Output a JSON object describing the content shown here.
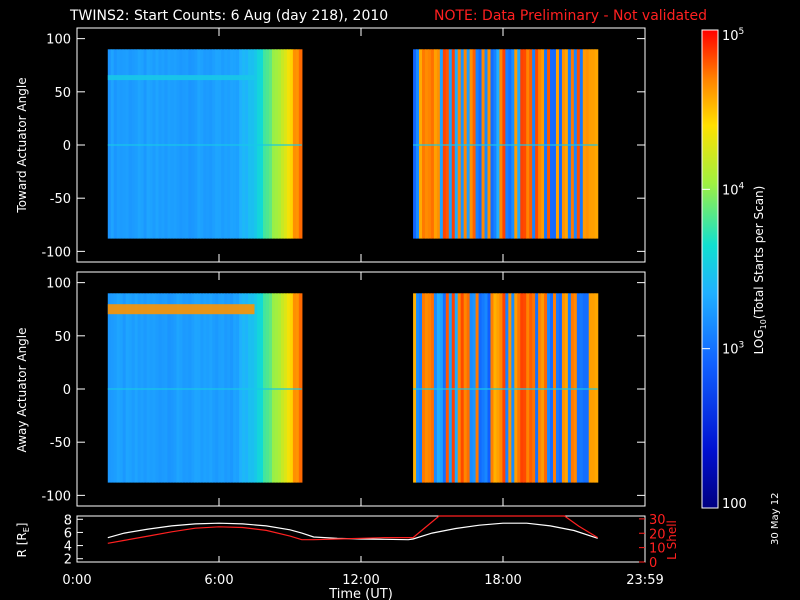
{
  "title": {
    "main": "TWINS2: Start Counts:  6 Aug (day 218), 2010",
    "note": "NOTE: Data Preliminary - Not validated"
  },
  "stamp": "30 May 12",
  "chart_data": [
    {
      "type": "heatmap",
      "panel": "toward",
      "ylabel": "Toward Actuator Angle",
      "ylim": [
        -110,
        110
      ],
      "yticks": [
        100,
        50,
        0,
        -50,
        -100
      ],
      "data_blocks": [
        {
          "x_start_h": 1.3,
          "x_end_h": 9.5,
          "y_range": [
            -88,
            90
          ]
        },
        {
          "x_start_h": 14.2,
          "x_end_h": 22.0,
          "y_range": [
            -88,
            90
          ]
        }
      ]
    },
    {
      "type": "heatmap",
      "panel": "away",
      "ylabel": "Away Actuator Angle",
      "ylim": [
        -110,
        110
      ],
      "yticks": [
        100,
        50,
        0,
        -50,
        -100
      ],
      "data_blocks": [
        {
          "x_start_h": 1.3,
          "x_end_h": 9.5,
          "y_range": [
            -88,
            90
          ]
        },
        {
          "x_start_h": 14.2,
          "x_end_h": 22.0,
          "y_range": [
            -88,
            90
          ]
        }
      ]
    },
    {
      "type": "line",
      "panel": "orbit",
      "xlabel": "Time (UT)",
      "xticks": [
        "0:00",
        "6:00",
        "12:00",
        "18:00",
        "23:59"
      ],
      "xtick_hours": [
        0,
        6,
        12,
        18,
        24
      ],
      "ylabel_left": "R [R",
      "ylabel_left_sub": "E",
      "ylabel_left_end": "]",
      "yticks_left": [
        2,
        4,
        6,
        8
      ],
      "ylim_left": [
        1.5,
        8.5
      ],
      "ylabel_right": "L Shell",
      "yticks_right": [
        0,
        10,
        20,
        30
      ],
      "ylim_right": [
        0,
        32
      ],
      "series": [
        {
          "color": "#ffffff",
          "axis": "left",
          "x": [
            1.3,
            2,
            3,
            4,
            5,
            6,
            7,
            8,
            9,
            9.5,
            10,
            11,
            12,
            13,
            14,
            14.2,
            15,
            16,
            17,
            18,
            19,
            20,
            21,
            22
          ],
          "y": [
            5.2,
            5.9,
            6.5,
            7.0,
            7.3,
            7.4,
            7.3,
            7.0,
            6.4,
            5.9,
            5.3,
            5.1,
            5.0,
            4.95,
            4.9,
            5.0,
            5.9,
            6.6,
            7.1,
            7.4,
            7.4,
            7.0,
            6.3,
            5.1
          ]
        },
        {
          "color": "#ff2020",
          "axis": "right",
          "x": [
            1.3,
            2,
            3,
            4,
            5,
            6,
            7,
            8,
            9,
            9.5,
            10,
            11,
            12,
            13,
            14,
            14.2,
            15.3,
            20.6,
            21.2,
            22
          ],
          "y": [
            13,
            15,
            18,
            21,
            23.5,
            24.5,
            24,
            22,
            18,
            15.5,
            15.5,
            16,
            16.5,
            17,
            17,
            17,
            32,
            32,
            25,
            17
          ]
        }
      ]
    },
    {
      "type": "colorbar",
      "label": "LOG",
      "label_sub": "10",
      "label_end": "(Total Starts per Scan)",
      "ticks": [
        {
          "value": "100",
          "log": 2
        },
        {
          "value": "10",
          "sup": "3",
          "log": 3
        },
        {
          "value": "10",
          "sup": "4",
          "log": 4
        },
        {
          "value": "10",
          "sup": "5",
          "log": 5
        }
      ]
    }
  ]
}
